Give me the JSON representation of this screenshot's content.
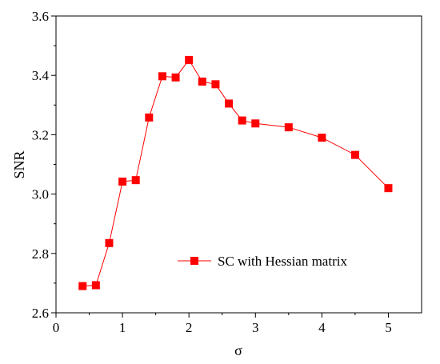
{
  "chart_data": {
    "type": "line",
    "title": "",
    "xlabel": "σ",
    "ylabel": "SNR",
    "xlim": [
      0,
      5.5
    ],
    "ylim": [
      2.6,
      3.6
    ],
    "xticks": [
      0,
      1,
      2,
      3,
      4,
      5
    ],
    "yticks": [
      2.6,
      2.8,
      3.0,
      3.2,
      3.4,
      3.6
    ],
    "xtick_labels": [
      "0",
      "1",
      "2",
      "3",
      "4",
      "5"
    ],
    "ytick_labels": [
      "2.6",
      "2.8",
      "3.0",
      "3.2",
      "3.4",
      "3.6"
    ],
    "grid": false,
    "legend_position": "lower-right",
    "series": [
      {
        "name": "SC with Hessian matrix",
        "color": "#ff0000",
        "marker": "square",
        "x": [
          0.4,
          0.6,
          0.8,
          1.0,
          1.2,
          1.4,
          1.6,
          1.8,
          2.0,
          2.2,
          2.4,
          2.6,
          2.8,
          3.0,
          3.5,
          4.0,
          4.5,
          5.0
        ],
        "y": [
          2.69,
          2.693,
          2.835,
          3.042,
          3.047,
          3.258,
          3.397,
          3.393,
          3.452,
          3.379,
          3.37,
          3.305,
          3.248,
          3.238,
          3.225,
          3.19,
          3.132,
          3.02
        ]
      }
    ]
  }
}
